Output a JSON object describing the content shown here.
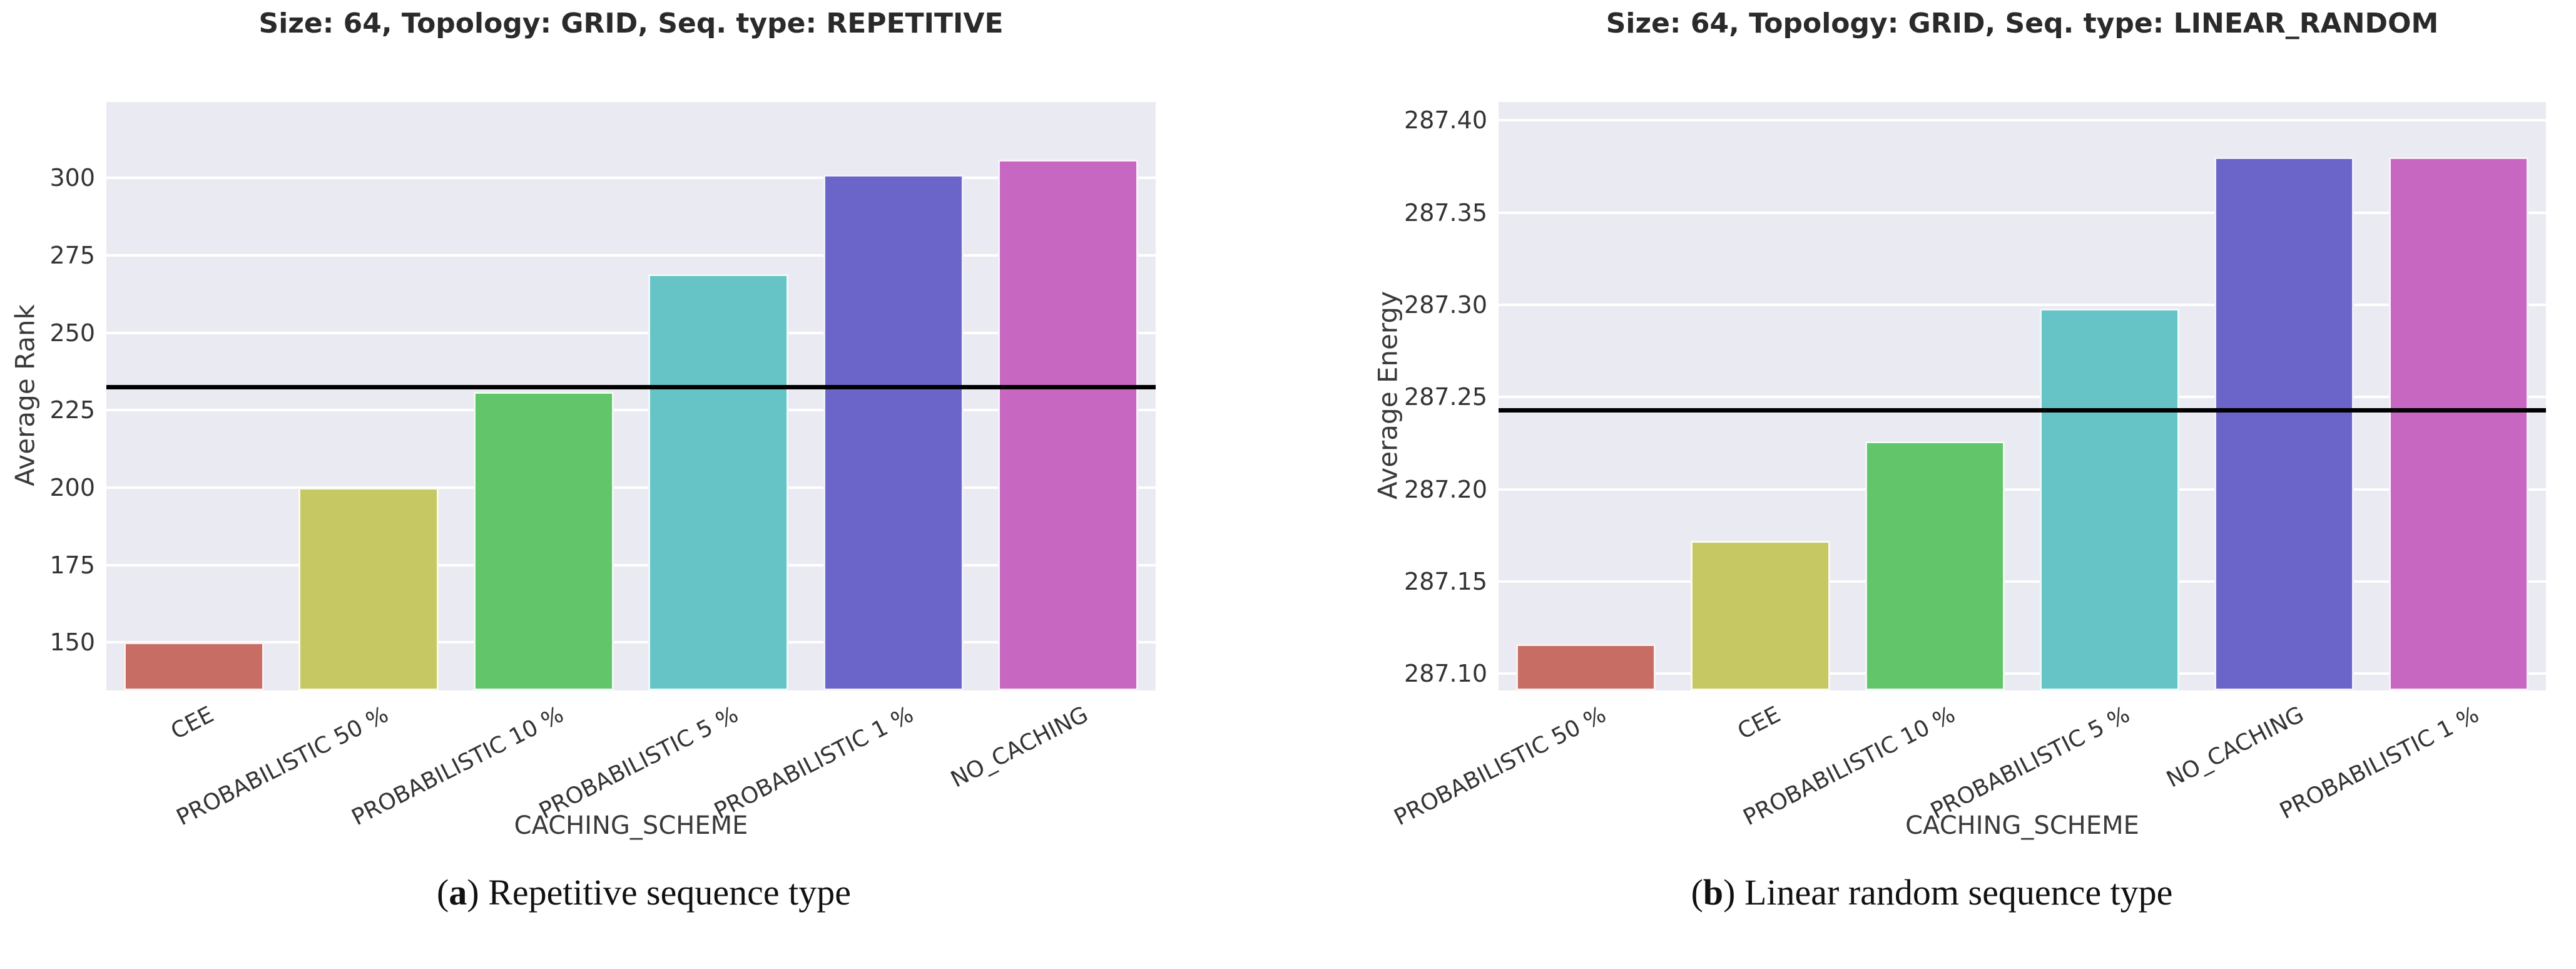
{
  "page": {
    "background": "#ffffff",
    "plot_background": "#eaeaf2",
    "grid_color": "#ffffff",
    "reference_line_color": "#000000"
  },
  "chart_data": [
    {
      "type": "bar",
      "title": "Size: 64, Topology: GRID, Seq. type: REPETITIVE",
      "xlabel": "CACHING_SCHEME",
      "ylabel": "Average Rank",
      "categories": [
        "CEE",
        "PROBABILISTIC 50 %",
        "PROBABILISTIC 10 %",
        "PROBABILISTIC 5 %",
        "PROBABILISTIC 1 %",
        "NO_CACHING"
      ],
      "values": [
        150,
        200,
        231,
        269,
        301,
        306
      ],
      "bar_colors": [
        "#c76d64",
        "#c6c963",
        "#62c56a",
        "#66c4c7",
        "#6b64c9",
        "#c767c2"
      ],
      "reference_line": 232.5,
      "ylim": [
        134.5,
        324.5
      ],
      "yticks": [
        150,
        175,
        200,
        225,
        250,
        275,
        300
      ],
      "ytick_labels": [
        "150",
        "175",
        "200",
        "225",
        "250",
        "275",
        "300"
      ],
      "grid": true,
      "legend": "none",
      "caption_prefix": "(",
      "caption_letter": "a",
      "caption_suffix": ")",
      "caption_text": " Repetitive sequence type"
    },
    {
      "type": "bar",
      "title": "Size: 64, Topology: GRID, Seq. type: LINEAR_RANDOM",
      "xlabel": "CACHING_SCHEME",
      "ylabel": "Average Energy",
      "categories": [
        "PROBABILISTIC 50 %",
        "CEE",
        "PROBABILISTIC 10 %",
        "PROBABILISTIC 5 %",
        "NO_CACHING",
        "PROBABILISTIC 1 %"
      ],
      "values": [
        287.116,
        287.172,
        287.226,
        287.298,
        287.38,
        287.38
      ],
      "bar_colors": [
        "#c76d64",
        "#c6c963",
        "#62c56a",
        "#66c4c7",
        "#6b64c9",
        "#c767c2"
      ],
      "reference_line": 287.243,
      "ylim": [
        287.091,
        287.41
      ],
      "yticks": [
        287.1,
        287.15,
        287.2,
        287.25,
        287.3,
        287.35,
        287.4
      ],
      "ytick_labels": [
        "287.10",
        "287.15",
        "287.20",
        "287.25",
        "287.30",
        "287.35",
        "287.40"
      ],
      "grid": true,
      "legend": "none",
      "caption_prefix": "(",
      "caption_letter": "b",
      "caption_suffix": ")",
      "caption_text": " Linear random sequence type"
    }
  ]
}
